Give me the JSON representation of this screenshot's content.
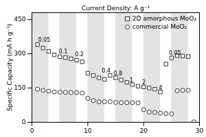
{
  "chart_data": {
    "type": "scatter",
    "title": "Current Density: A g⁻¹",
    "y_label": "Specific Capacity (mA h g⁻¹)",
    "xlim": [
      0,
      30
    ],
    "ylim": [
      0,
      480
    ],
    "xticks": [
      0,
      10,
      20,
      30
    ],
    "yticks": [
      0,
      150,
      300,
      450
    ],
    "grid": false,
    "legend": "upper right",
    "bands": {
      "ranges": [
        [
          0,
          3
        ],
        [
          5,
          8
        ],
        [
          10,
          13
        ],
        [
          15,
          18
        ],
        [
          20,
          23
        ],
        [
          25,
          28
        ]
      ],
      "color": "#cccccc"
    },
    "series": [
      {
        "name": "2D amorphous MoO₂",
        "marker": "square",
        "color": "black",
        "x": [
          1,
          2,
          3,
          4,
          5,
          6,
          7,
          8,
          9,
          10,
          11,
          12,
          13,
          14,
          15,
          16,
          17,
          18,
          19,
          20,
          21,
          22,
          23,
          24,
          25,
          26,
          27,
          28
        ],
        "values": [
          340,
          325,
          310,
          295,
          287,
          283,
          278,
          272,
          265,
          215,
          205,
          195,
          188,
          205,
          195,
          185,
          175,
          165,
          158,
          155,
          150,
          145,
          133,
          255,
          282,
          292,
          290,
          288
        ]
      },
      {
        "name": "commercial MoO₂",
        "marker": "circle",
        "color": "black",
        "x": [
          1,
          2,
          3,
          4,
          5,
          6,
          7,
          8,
          9,
          10,
          11,
          12,
          13,
          14,
          15,
          16,
          17,
          18,
          19,
          20,
          21,
          22,
          23,
          24,
          25,
          26,
          27,
          28,
          29
        ],
        "values": [
          145,
          140,
          136,
          133,
          132,
          131,
          130,
          130,
          128,
          105,
          95,
          90,
          90,
          90,
          87,
          86,
          86,
          86,
          85,
          55,
          45,
          43,
          40,
          38,
          37,
          138,
          140,
          140,
          2
        ]
      }
    ],
    "annotations": [
      {
        "text": "0.05",
        "x": 1.1,
        "y": 345
      },
      {
        "text": "0.1",
        "x": 4.8,
        "y": 292
      },
      {
        "text": "0.2",
        "x": 7.7,
        "y": 280
      },
      {
        "text": "0.4",
        "x": 12.5,
        "y": 208
      },
      {
        "text": "0.8",
        "x": 14.6,
        "y": 197
      },
      {
        "text": "1",
        "x": 17.5,
        "y": 168
      },
      {
        "text": "2",
        "x": 19.7,
        "y": 158
      },
      {
        "text": "4",
        "x": 22.7,
        "y": 135
      },
      {
        "text": "0.05",
        "x": 24.5,
        "y": 287
      }
    ]
  }
}
